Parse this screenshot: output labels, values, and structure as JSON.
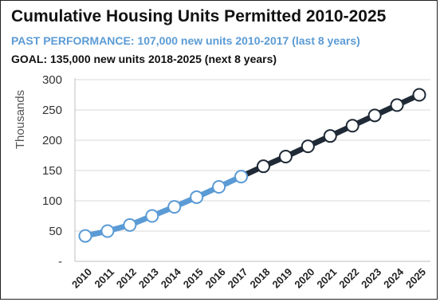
{
  "chart_data": {
    "type": "line",
    "title": "Cumulative Housing Units Permitted 2010-2025",
    "subtitle_past": "PAST PERFORMANCE: 107,000 new units 2010-2017  (last 8 years)",
    "subtitle_goal": "GOAL: 135,000 new units 2018-2025  (next 8 years)",
    "ylabel": "Thousands",
    "xlabel": "",
    "ylim": [
      0,
      300
    ],
    "y_ticks": [
      "-",
      "50",
      "100",
      "150",
      "200",
      "250",
      "300"
    ],
    "x": [
      "2010",
      "2011",
      "2012",
      "2013",
      "2014",
      "2015",
      "2016",
      "2017",
      "2018",
      "2019",
      "2020",
      "2021",
      "2022",
      "2023",
      "2024",
      "2025"
    ],
    "series": [
      {
        "role": "past",
        "color": "#5b9bd5",
        "x": [
          "2010",
          "2011",
          "2012",
          "2013",
          "2014",
          "2015",
          "2016",
          "2017"
        ],
        "values": [
          42,
          50,
          60,
          75,
          90,
          106,
          123,
          140
        ]
      },
      {
        "role": "goal",
        "color": "#1f2a36",
        "x": [
          "2017",
          "2018",
          "2019",
          "2020",
          "2021",
          "2022",
          "2023",
          "2024",
          "2025"
        ],
        "values": [
          140,
          157,
          173,
          190,
          207,
          224,
          241,
          258,
          275
        ]
      }
    ],
    "grid": "horizontal",
    "colors": {
      "past": "#5b9bd5",
      "goal": "#1f2a36",
      "marker_fill": "#ffffff",
      "grid": "#d9d9d9"
    }
  }
}
